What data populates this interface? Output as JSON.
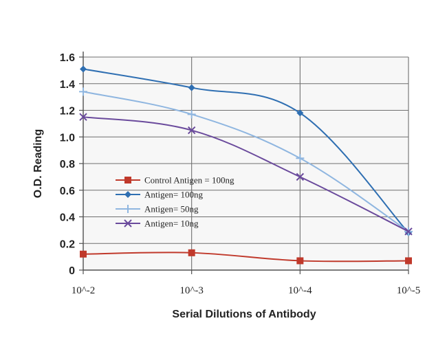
{
  "chart_data": {
    "type": "line",
    "title": "",
    "xlabel": "Serial Dilutions of Antibody",
    "ylabel": "O.D. Reading",
    "categories": [
      "10^-2",
      "10^-3",
      "10^-4",
      "10^-5"
    ],
    "y_ticks": [
      "0",
      "0.2",
      "0.4",
      "0.6",
      "0.8",
      "1.0",
      "1.2",
      "1.4",
      "1.6"
    ],
    "ylim": [
      0,
      1.6
    ],
    "grid": "major gridlines on both axes",
    "legend_position": "center-left",
    "series": [
      {
        "name": "Control Antigen = 100ng",
        "values": [
          0.12,
          0.13,
          0.07,
          0.07
        ],
        "color": "#c0392b",
        "marker": "square"
      },
      {
        "name": "Antigen= 100ng",
        "values": [
          1.51,
          1.37,
          1.18,
          0.28
        ],
        "color": "#2f6fb2",
        "marker": "diamond"
      },
      {
        "name": "Antigen= 50ng",
        "values": [
          1.34,
          1.17,
          0.84,
          0.29
        ],
        "color": "#8fb6e0",
        "marker": "plus"
      },
      {
        "name": "Antigen= 10ng",
        "values": [
          1.15,
          1.05,
          0.7,
          0.29
        ],
        "color": "#6a4a9c",
        "marker": "cross"
      }
    ]
  }
}
